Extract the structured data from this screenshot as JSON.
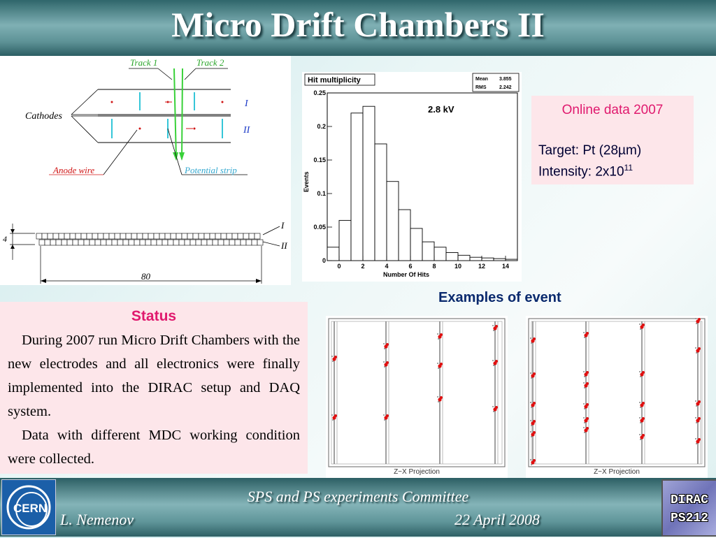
{
  "slide": {
    "title": "Micro Drift Chambers  II",
    "footer": {
      "committee": "SPS and PS experiments Committee",
      "author": "L. Nemenov",
      "date": "22 April 2008",
      "left_logo_text": "CERN",
      "right_logo_line1": "DIRAC",
      "right_logo_line2": "PS212"
    }
  },
  "schematic": {
    "track1": "Track 1",
    "track2": "Track 2",
    "cathodes": "Cathodes",
    "anode_wire": "Anode wire",
    "potential_strip": "Potential strip",
    "layer_one": "I",
    "layer_two": "II",
    "dim_height": "4",
    "dim_width": "80"
  },
  "online": {
    "heading": "Online data 2007",
    "target": "Target: Pt (28µm)",
    "intensity_base": "Intensity: 2x10",
    "intensity_exp": "11"
  },
  "status": {
    "heading": "Status",
    "para1": "During 2007 run Micro Drift Chambers with the new electrodes and all electronics were finally implemented into the DIRAC setup and DAQ system.",
    "para2": "Data with different MDC working condition were collected."
  },
  "events": {
    "caption": "Examples of event",
    "panel_label": "Z−X Projection"
  },
  "chart_data": {
    "type": "bar",
    "title": "Hit multiplicity",
    "annotation": "2.8 kV",
    "stats": {
      "mean_label": "Mean",
      "mean": "3.855",
      "rms_label": "RMS",
      "rms": "2.242"
    },
    "xlabel": "Number Of Hits",
    "ylabel": "Events",
    "xlim": [
      -1,
      15
    ],
    "ylim": [
      0,
      0.25
    ],
    "x_ticks": [
      "0",
      "2",
      "4",
      "6",
      "8",
      "10",
      "12",
      "14"
    ],
    "y_ticks": [
      "0",
      "0.05",
      "0.1",
      "0.15",
      "0.2",
      "0.25"
    ],
    "bin_edges": [
      -1,
      0,
      1,
      2,
      3,
      4,
      5,
      6,
      7,
      8,
      9,
      10,
      11,
      12,
      13,
      14,
      15
    ],
    "values": [
      0.02,
      0.06,
      0.22,
      0.23,
      0.174,
      0.118,
      0.076,
      0.048,
      0.028,
      0.02,
      0.012,
      0.008,
      0.005,
      0.004,
      0.003,
      0.002
    ]
  }
}
